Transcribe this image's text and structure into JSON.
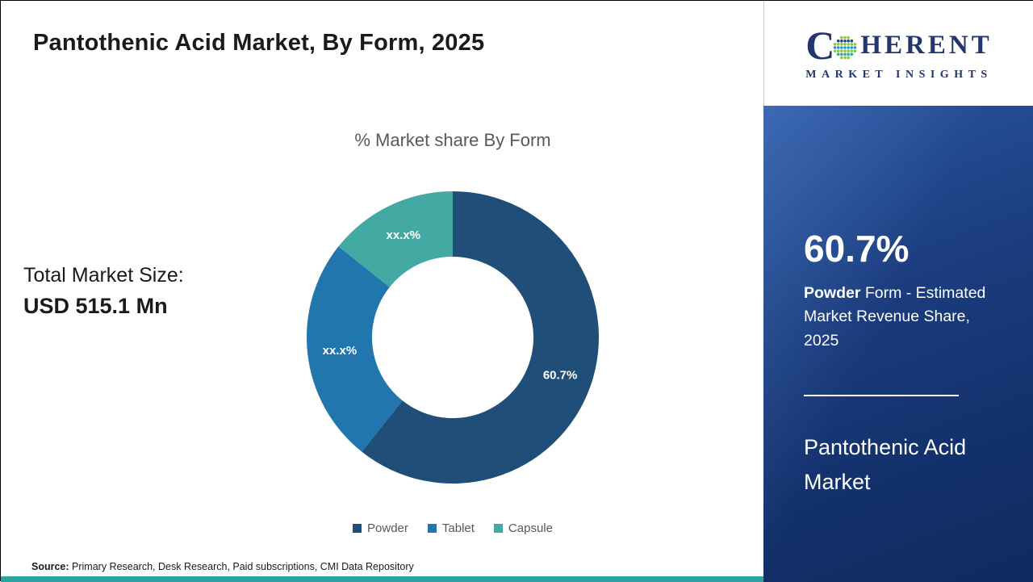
{
  "header": {
    "title": "Pantothenic Acid Market, By Form, 2025"
  },
  "logo": {
    "letter_c": "C",
    "rest": "HERENT",
    "subtitle": "MARKET INSIGHTS"
  },
  "total_market": {
    "label": "Total Market Size:",
    "value": "USD 515.1 Mn"
  },
  "chart_data": {
    "type": "pie",
    "donut": true,
    "title": "% Market share By Form",
    "start_angle_deg": 0,
    "direction": "clockwise",
    "legend_position": "bottom",
    "segments": [
      {
        "label": "Powder",
        "display": "60.7%",
        "value_est": 60.7,
        "color": "#1f4e79"
      },
      {
        "label": "Tablet",
        "display": "xx.x%",
        "value_est": 25.0,
        "color": "#2176ae"
      },
      {
        "label": "Capsule",
        "display": "xx.x%",
        "value_est": 14.3,
        "color": "#43a9a3"
      }
    ]
  },
  "sidebar": {
    "highlight_value": "60.7%",
    "highlight_bold": "Powder",
    "highlight_rest": " Form - Estimated Market Revenue Share, 2025",
    "market_name": "Pantothenic Acid Market"
  },
  "source": {
    "label": "Source:",
    "text": " Primary Research, Desk Research, Paid subscriptions, CMI Data Repository"
  },
  "colors": {
    "stripe_teal": "#2aa49e",
    "panel_navy": "#12306a",
    "logo_navy": "#22356f"
  }
}
